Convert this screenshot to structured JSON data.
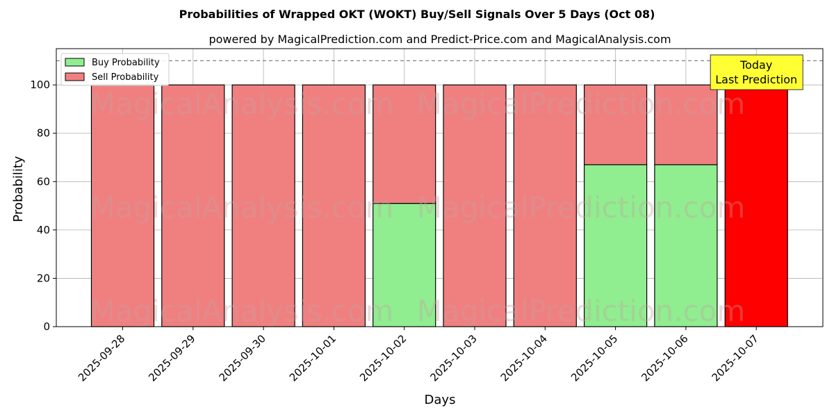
{
  "chart_data": {
    "type": "bar",
    "stacked": true,
    "title": "Probabilities of Wrapped OKT (WOKT) Buy/Sell Signals Over 5 Days (Oct 08)",
    "subtitle": "powered by MagicalPrediction.com and Predict-Price.com and MagicalAnalysis.com",
    "xlabel": "Days",
    "ylabel": "Probability",
    "ylim": [
      0,
      115
    ],
    "yticks": [
      0,
      20,
      40,
      60,
      80,
      100
    ],
    "grid": true,
    "legend_position": "top-left",
    "categories": [
      "2025-09-28",
      "2025-09-29",
      "2025-09-30",
      "2025-10-01",
      "2025-10-02",
      "2025-10-03",
      "2025-10-04",
      "2025-10-05",
      "2025-10-06",
      "2025-10-07"
    ],
    "series": [
      {
        "name": "Buy Probability",
        "color": "#90ee90",
        "values": [
          0,
          0,
          0,
          0,
          51,
          0,
          0,
          67,
          67,
          0
        ]
      },
      {
        "name": "Sell Probability",
        "color": "#f08080",
        "values": [
          100,
          100,
          100,
          100,
          49,
          100,
          100,
          33,
          33,
          100
        ]
      }
    ],
    "highlight": {
      "index": 9,
      "color": "#ff0000"
    },
    "reference_line": {
      "y": 110,
      "style": "dashed",
      "color": "#808080"
    },
    "annotation": {
      "lines": [
        "Today",
        "Last Prediction"
      ],
      "background": "#ffff33",
      "category_index": 9
    },
    "watermarks": [
      "MagicalAnalysis.com",
      "MagicalPrediction.com"
    ]
  }
}
